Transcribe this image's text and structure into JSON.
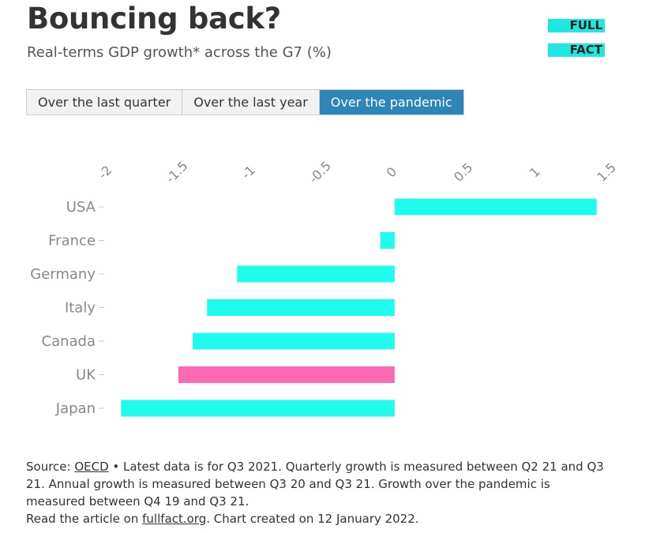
{
  "header": {
    "title": "Bouncing back?",
    "subtitle": "Real-terms GDP growth* across the G7 (%)"
  },
  "logo": {
    "line1": "FULL",
    "line2": "FACT"
  },
  "tabs": [
    {
      "label": "Over the last quarter",
      "active": false
    },
    {
      "label": "Over the last year",
      "active": false
    },
    {
      "label": "Over the pandemic",
      "active": true
    }
  ],
  "chart_data": {
    "type": "bar",
    "orientation": "horizontal",
    "title": "Bouncing back?",
    "subtitle": "Real-terms GDP growth* across the G7 (%)",
    "categories": [
      "USA",
      "France",
      "Germany",
      "Italy",
      "Canada",
      "UK",
      "Japan"
    ],
    "values": [
      1.41,
      -0.1,
      -1.1,
      -1.31,
      -1.41,
      -1.51,
      -1.91
    ],
    "colors": [
      "#1ffcee",
      "#1ffcee",
      "#1ffcee",
      "#1ffcee",
      "#1ffcee",
      "#ff69b4",
      "#1ffcee"
    ],
    "xlim": [
      -2,
      1.5
    ],
    "x_ticks": [
      "-2",
      "-1.5",
      "-1",
      "-0.5",
      "0",
      "0.5",
      "1",
      "1.5"
    ],
    "x_tick_values": [
      -2,
      -1.5,
      -1,
      -0.5,
      0,
      0.5,
      1,
      1.5
    ],
    "grid": false,
    "xlabel": "",
    "ylabel": ""
  },
  "footer": {
    "source_prefix": "Source: ",
    "source_link": "OECD",
    "source_text": " • Latest data is for Q3 2021. Quarterly growth is measured between Q2 21 and Q3 21. Annual growth is measured between Q3 20 and Q3 21. Growth over the pandemic is measured between Q4 19 and Q3 21.",
    "read_prefix": "Read the article on ",
    "read_link": "fullfact.org",
    "read_suffix": ". Chart created on 12 January 2022."
  }
}
